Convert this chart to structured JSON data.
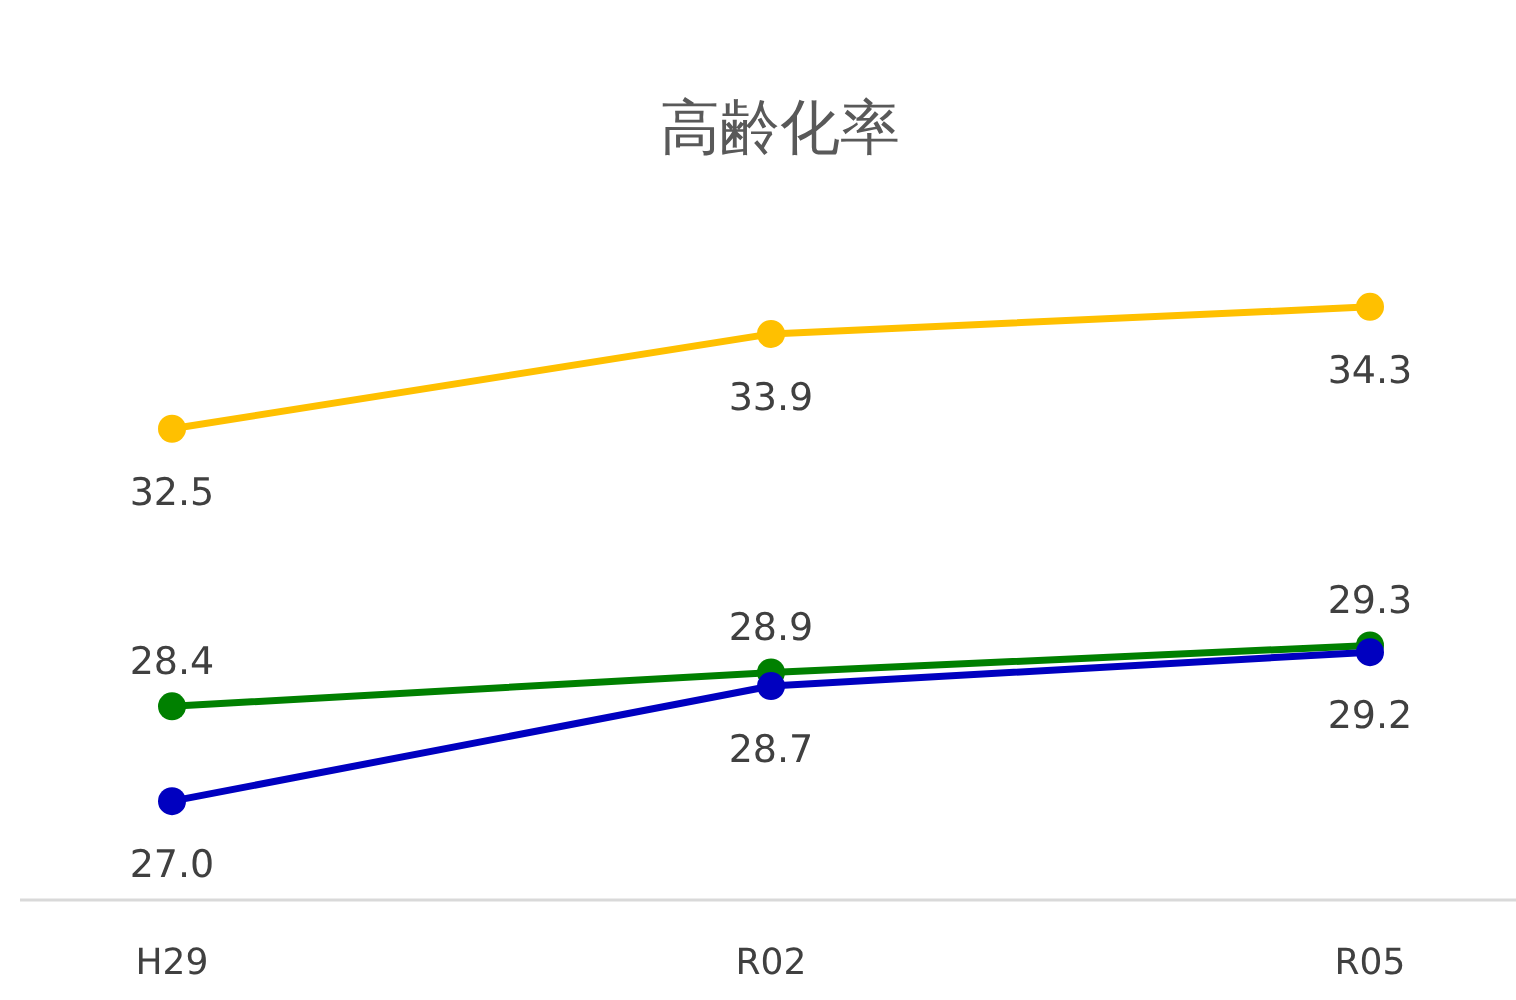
{
  "chart_data": {
    "type": "line",
    "title": "高齢化率",
    "categories": [
      "H29",
      "R02",
      "R05"
    ],
    "series": [
      {
        "color": "#ffc000",
        "values": [
          32.5,
          33.9,
          34.3
        ],
        "value_labels": [
          "32.5",
          "33.9",
          "34.3"
        ]
      },
      {
        "color": "#008000",
        "values": [
          28.4,
          28.9,
          29.3
        ],
        "value_labels": [
          "28.4",
          "28.9",
          "29.3"
        ]
      },
      {
        "color": "#0000c0",
        "values": [
          27.0,
          28.7,
          29.2
        ],
        "value_labels": [
          "27.0",
          "28.7",
          "29.2"
        ]
      }
    ],
    "marker": "circle",
    "line_style": "solid",
    "grid": false
  }
}
